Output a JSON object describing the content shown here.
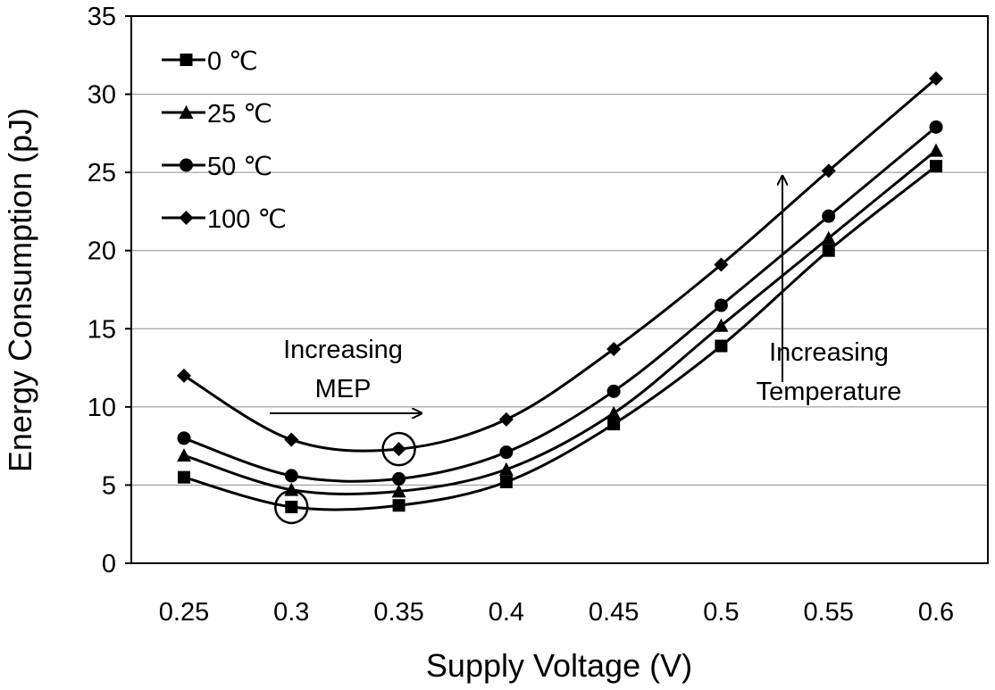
{
  "chart_data": {
    "type": "line",
    "title": "",
    "xlabel": "Supply Voltage (V)",
    "ylabel": "Energy Consumption (pJ)",
    "x": [
      0.25,
      0.3,
      0.35,
      0.4,
      0.45,
      0.5,
      0.55,
      0.6
    ],
    "x_tick_labels": [
      "0.25",
      "0.3",
      "0.35",
      "0.4",
      "0.45",
      "0.5",
      "0.55",
      "0.6"
    ],
    "ylim": [
      0,
      35
    ],
    "y_ticks": [
      0,
      5,
      10,
      15,
      20,
      25,
      30,
      35
    ],
    "y_tick_labels": [
      "0",
      "5",
      "10",
      "15",
      "20",
      "25",
      "30",
      "35"
    ],
    "grid": "horizontal",
    "legend_position": "top-left",
    "series": [
      {
        "name": "0 ℃",
        "marker": "square",
        "color": "#000000",
        "values": [
          5.5,
          3.6,
          3.7,
          5.2,
          8.9,
          13.9,
          20.0,
          25.4
        ]
      },
      {
        "name": "25 ℃",
        "marker": "triangle",
        "color": "#000000",
        "values": [
          6.9,
          4.7,
          4.6,
          6.0,
          9.6,
          15.2,
          20.8,
          26.4
        ]
      },
      {
        "name": "50 ℃",
        "marker": "circle",
        "color": "#000000",
        "values": [
          8.0,
          5.6,
          5.4,
          7.1,
          11.0,
          16.5,
          22.2,
          27.9
        ]
      },
      {
        "name": "100 ℃",
        "marker": "diamond",
        "color": "#000000",
        "values": [
          12.0,
          7.9,
          7.3,
          9.2,
          13.7,
          19.1,
          25.1,
          31.0
        ]
      }
    ],
    "annotations": [
      {
        "id": "mep",
        "lines": [
          "Increasing",
          "MEP"
        ],
        "arrow": "right"
      },
      {
        "id": "temperature",
        "lines": [
          "Increasing",
          "Temperature"
        ],
        "arrow": "up"
      }
    ],
    "highlighted_points": [
      {
        "series": "0 ℃",
        "x": 0.3,
        "y": 3.6
      },
      {
        "series": "100 ℃",
        "x": 0.35,
        "y": 7.3
      }
    ]
  }
}
